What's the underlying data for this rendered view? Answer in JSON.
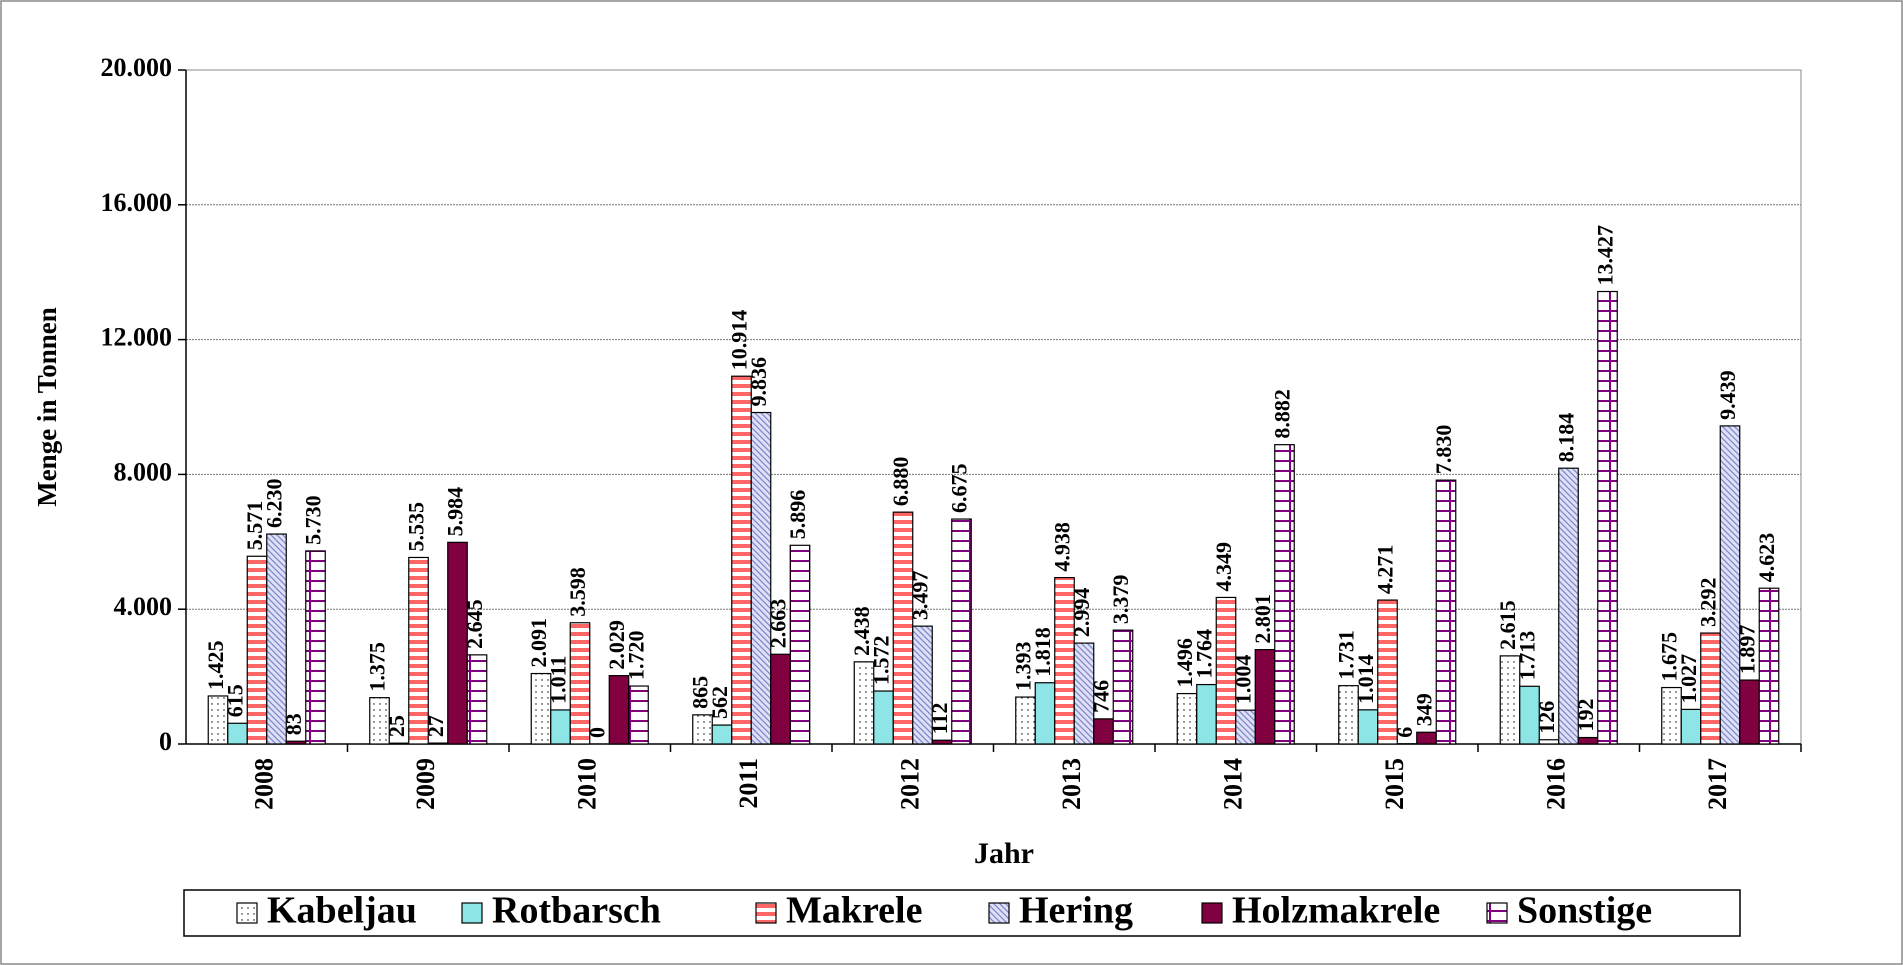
{
  "chart_data": {
    "type": "bar",
    "x_label": "Jahr",
    "y_label": "Menge in Tonnen",
    "categories": [
      "2008",
      "2009",
      "2010",
      "2011",
      "2012",
      "2013",
      "2014",
      "2015",
      "2016",
      "2017"
    ],
    "ylim": [
      0,
      20000
    ],
    "yticks": [
      0,
      {
        "value": 4000,
        "label": "4.000"
      },
      {
        "value": 8000,
        "label": "8.000"
      },
      {
        "value": 12000,
        "label": "12.000"
      },
      {
        "value": 16000,
        "label": "16.000"
      },
      {
        "value": 20000,
        "label": "20.000"
      }
    ],
    "grid": true,
    "series": [
      {
        "name": "Kabeljau",
        "color": "#000000",
        "values": [
          1425,
          1375,
          2091,
          865,
          2438,
          1393,
          1496,
          1731,
          2615,
          1675
        ],
        "value_labels": [
          "1.425",
          "1.375",
          "2.091",
          "865",
          "2.438",
          "1.393",
          "1.496",
          "1.731",
          "2.615",
          "1.675"
        ]
      },
      {
        "name": "Rotbarsch",
        "color": "#8ee5e5",
        "values": [
          615,
          25,
          1011,
          562,
          1572,
          1818,
          1764,
          1014,
          1713,
          1027
        ],
        "value_labels": [
          "615",
          "25",
          "1.011",
          "562",
          "1.572",
          "1.818",
          "1.764",
          "1.014",
          "1.713",
          "1.027"
        ]
      },
      {
        "name": "Makrele",
        "color": "#ff6666",
        "values": [
          5571,
          5535,
          3598,
          10914,
          6880,
          4938,
          4349,
          4271,
          126,
          3292
        ],
        "value_labels": [
          "5.571",
          "5.535",
          "3.598",
          "10.914",
          "6.880",
          "4.938",
          "4.349",
          "4.271",
          "126",
          "3.292"
        ]
      },
      {
        "name": "Hering",
        "color": "#7f86c8",
        "values": [
          6230,
          27,
          0,
          9836,
          3497,
          2994,
          1004,
          6,
          8184,
          9439
        ],
        "value_labels": [
          "6.230",
          "27",
          "0",
          "9.836",
          "3.497",
          "2.994",
          "1.004",
          "6",
          "8.184",
          "9.439"
        ]
      },
      {
        "name": "Holzmakrele",
        "color": "#800040",
        "values": [
          83,
          5984,
          2029,
          2663,
          112,
          746,
          2801,
          349,
          192,
          1897
        ],
        "value_labels": [
          "83",
          "5.984",
          "2.029",
          "2.663",
          "112",
          "746",
          "2.801",
          "349",
          "192",
          "1.897"
        ]
      },
      {
        "name": "Sonstige",
        "color": "#800080",
        "values": [
          5730,
          2645,
          1720,
          5896,
          6675,
          3379,
          8882,
          7830,
          13427,
          4623
        ],
        "value_labels": [
          "5.730",
          "2.645",
          "1.720",
          "5.896",
          "6.675",
          "3.379",
          "8.882",
          "7.830",
          "13.427",
          "4.623"
        ]
      }
    ]
  }
}
